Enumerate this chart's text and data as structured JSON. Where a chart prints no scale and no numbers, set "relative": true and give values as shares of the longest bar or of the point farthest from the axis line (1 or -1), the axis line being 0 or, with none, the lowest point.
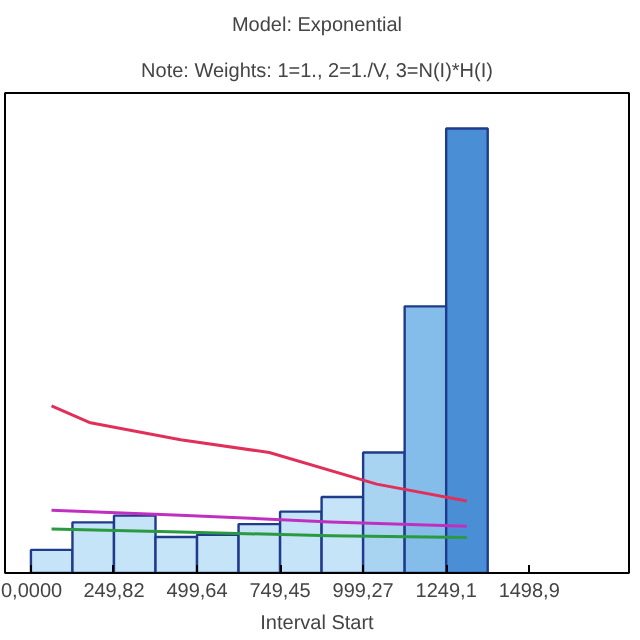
{
  "chart_data": {
    "type": "histogram",
    "title": "Model: Exponential",
    "subtitle": "Note: Weights: 1=1., 2=1./V, 3=N(I)*H(I)",
    "xlabel": "Interval Start",
    "relative": true,
    "bins": [
      0,
      124.91,
      249.82,
      374.73,
      499.64,
      624.55,
      749.45,
      874.36,
      999.27,
      1124.18,
      1249.1,
      1374.0
    ],
    "values": [
      0.052,
      0.114,
      0.129,
      0.081,
      0.086,
      0.11,
      0.138,
      0.171,
      0.271,
      0.6,
      1.0
    ],
    "colors": [
      "#c6e4f7",
      "#c6e4f7",
      "#c6e4f7",
      "#c6e4f7",
      "#c6e4f7",
      "#c6e4f7",
      "#c6e4f7",
      "#c6e4f7",
      "#a8d4f2",
      "#84bde9",
      "#4a8fd6"
    ],
    "series": [
      {
        "type": "line",
        "color": "#e0305a",
        "x": [
          62,
          179,
          450,
          717,
          1040,
          1311
        ],
        "values": [
          0.376,
          0.338,
          0.3,
          0.271,
          0.2,
          0.162
        ]
      },
      {
        "type": "line",
        "color": "#c030c0",
        "x": [
          62,
          450,
          900,
          1311
        ],
        "values": [
          0.141,
          0.13,
          0.115,
          0.105
        ]
      },
      {
        "type": "line",
        "color": "#2a9a40",
        "x": [
          62,
          450,
          900,
          1311
        ],
        "values": [
          0.099,
          0.092,
          0.084,
          0.08
        ]
      }
    ],
    "xlim": [
      -78,
      1799
    ],
    "xticks": [
      {
        "value": 0,
        "label": "0,0000"
      },
      {
        "value": 249.82,
        "label": "249,82"
      },
      {
        "value": 499.64,
        "label": "499,64"
      },
      {
        "value": 749.45,
        "label": "749,45"
      },
      {
        "value": 999.27,
        "label": "999,27"
      },
      {
        "value": 1249.1,
        "label": "1249,1"
      },
      {
        "value": 1498.9,
        "label": "1498,9"
      }
    ],
    "tick_labels": "x"
  }
}
